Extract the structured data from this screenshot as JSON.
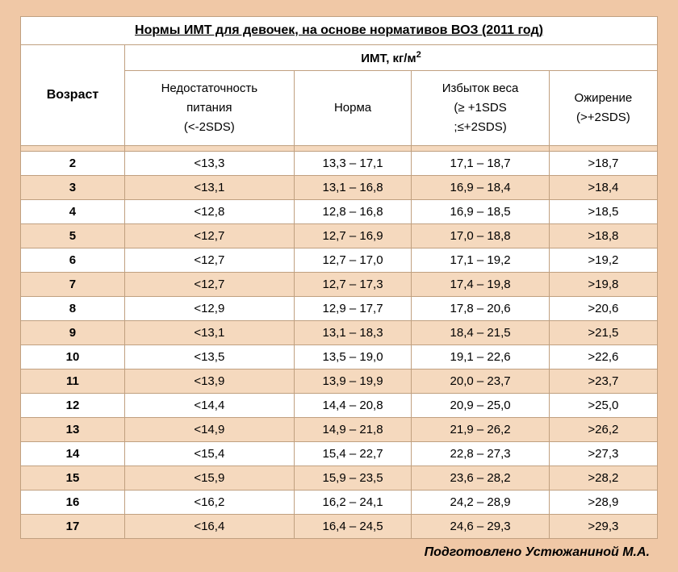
{
  "title": "Нормы ИМТ для девочек, на основе нормативов ВОЗ (2011 год)",
  "unit_header": "ИМТ, кг/м",
  "unit_sup": "2",
  "age_header": "Возраст",
  "columns": {
    "c1_l1": "Недостаточность",
    "c1_l2": "питания",
    "c1_l3": "(<-2SDS)",
    "c2_l1": "Норма",
    "c3_l1": "Избыток веса",
    "c3_l2": "(≥ +1SDS",
    "c3_l3": ";≤+2SDS)",
    "c4_l1": "Ожирение",
    "c4_l2": "(>+2SDS)"
  },
  "rows": [
    {
      "age": "2",
      "a": "<13,3",
      "b": "13,3 – 17,1",
      "c": "17,1 – 18,7",
      "d": ">18,7"
    },
    {
      "age": "3",
      "a": "<13,1",
      "b": "13,1 – 16,8",
      "c": "16,9 – 18,4",
      "d": ">18,4"
    },
    {
      "age": "4",
      "a": "<12,8",
      "b": "12,8 – 16,8",
      "c": "16,9 – 18,5",
      "d": ">18,5"
    },
    {
      "age": "5",
      "a": "<12,7",
      "b": "12,7 – 16,9",
      "c": "17,0 – 18,8",
      "d": ">18,8"
    },
    {
      "age": "6",
      "a": "<12,7",
      "b": "12,7 – 17,0",
      "c": "17,1 – 19,2",
      "d": ">19,2"
    },
    {
      "age": "7",
      "a": "<12,7",
      "b": "12,7 – 17,3",
      "c": "17,4 – 19,8",
      "d": ">19,8"
    },
    {
      "age": "8",
      "a": "<12,9",
      "b": "12,9 – 17,7",
      "c": "17,8 – 20,6",
      "d": ">20,6"
    },
    {
      "age": "9",
      "a": "<13,1",
      "b": "13,1 – 18,3",
      "c": "18,4 – 21,5",
      "d": ">21,5"
    },
    {
      "age": "10",
      "a": "<13,5",
      "b": "13,5 – 19,0",
      "c": "19,1 – 22,6",
      "d": ">22,6"
    },
    {
      "age": "11",
      "a": "<13,9",
      "b": "13,9 – 19,9",
      "c": "20,0 – 23,7",
      "d": ">23,7"
    },
    {
      "age": "12",
      "a": "<14,4",
      "b": "14,4 – 20,8",
      "c": "20,9 – 25,0",
      "d": ">25,0"
    },
    {
      "age": "13",
      "a": "<14,9",
      "b": "14,9 – 21,8",
      "c": "21,9 – 26,2",
      "d": ">26,2"
    },
    {
      "age": "14",
      "a": "<15,4",
      "b": "15,4 – 22,7",
      "c": "22,8 – 27,3",
      "d": ">27,3"
    },
    {
      "age": "15",
      "a": "<15,9",
      "b": "15,9 – 23,5",
      "c": "23,6 – 28,2",
      "d": ">28,2"
    },
    {
      "age": "16",
      "a": "<16,2",
      "b": "16,2 – 24,1",
      "c": "24,2 – 28,9",
      "d": ">28,9"
    },
    {
      "age": "17",
      "a": "<16,4",
      "b": "16,4 – 24,5",
      "c": "24,6 – 29,3",
      "d": ">29,3"
    }
  ],
  "footer": "Подготовлено Устюжаниной М.А.",
  "colors": {
    "page_bg": "#f0c8a6",
    "row_alt_bg": "#f5d9be",
    "row_bg": "#ffffff",
    "border": "#c0a080"
  }
}
